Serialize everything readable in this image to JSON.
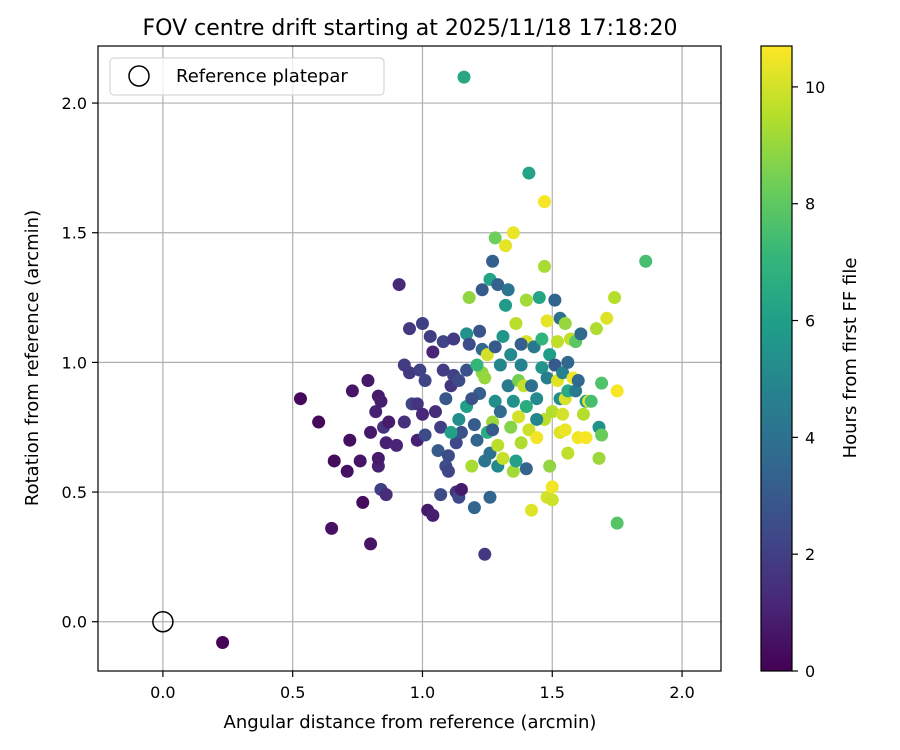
{
  "chart_data": {
    "type": "scatter",
    "title": "FOV centre drift starting at 2025/11/18 17:18:20",
    "xlabel": "Angular distance from reference (arcmin)",
    "ylabel": "Rotation from reference (arcmin)",
    "xlim": [
      -0.25,
      2.15
    ],
    "ylim": [
      -0.19,
      2.22
    ],
    "xticks": [
      0.0,
      0.5,
      1.0,
      1.5,
      2.0
    ],
    "xtick_labels": [
      "0.0",
      "0.5",
      "1.0",
      "1.5",
      "2.0"
    ],
    "yticks": [
      0.0,
      0.5,
      1.0,
      1.5,
      2.0
    ],
    "ytick_labels": [
      "0.0",
      "0.5",
      "1.0",
      "1.5",
      "2.0"
    ],
    "grid": true,
    "legend": {
      "position": "top-left",
      "entries": [
        "Reference platepar"
      ]
    },
    "reference_point": {
      "x": 0.0,
      "y": 0.0,
      "label": "Reference platepar",
      "marker": "hollow-circle"
    },
    "colorbar": {
      "label": "Hours from first FF file",
      "range": [
        0,
        10.7
      ],
      "ticks": [
        0,
        2,
        4,
        6,
        8,
        10
      ],
      "tick_labels": [
        "0",
        "2",
        "4",
        "6",
        "8",
        "10"
      ],
      "colormap": "viridis",
      "stops": [
        "#440154",
        "#482878",
        "#3e4a89",
        "#31688e",
        "#26828e",
        "#1f9e89",
        "#35b779",
        "#6ece58",
        "#b5de2b",
        "#fde725"
      ]
    },
    "series": [
      {
        "name": "FOV centre drift",
        "points": [
          [
            0.23,
            -0.08,
            0.1
          ],
          [
            0.53,
            0.86,
            0.2
          ],
          [
            0.6,
            0.77,
            0.2
          ],
          [
            0.66,
            0.62,
            0.3
          ],
          [
            0.65,
            0.36,
            0.5
          ],
          [
            0.71,
            0.58,
            0.5
          ],
          [
            0.72,
            0.7,
            0.4
          ],
          [
            0.73,
            0.89,
            0.6
          ],
          [
            0.76,
            0.62,
            0.6
          ],
          [
            0.77,
            0.46,
            0.3
          ],
          [
            0.79,
            0.93,
            0.7
          ],
          [
            0.8,
            0.3,
            0.6
          ],
          [
            0.8,
            0.73,
            0.7
          ],
          [
            0.82,
            0.81,
            1.0
          ],
          [
            0.83,
            0.6,
            1.0
          ],
          [
            0.83,
            0.63,
            0.8
          ],
          [
            0.83,
            0.87,
            0.8
          ],
          [
            0.84,
            0.85,
            0.9
          ],
          [
            0.84,
            0.51,
            2.0
          ],
          [
            0.86,
            0.49,
            1.4
          ],
          [
            0.85,
            0.75,
            1.6
          ],
          [
            0.86,
            0.69,
            1.0
          ],
          [
            0.87,
            0.77,
            0.8
          ],
          [
            0.9,
            0.68,
            1.1
          ],
          [
            0.91,
            1.3,
            1.2
          ],
          [
            0.93,
            0.99,
            1.9
          ],
          [
            0.93,
            0.77,
            1.5
          ],
          [
            0.95,
            1.13,
            1.8
          ],
          [
            0.95,
            0.96,
            1.8
          ],
          [
            0.96,
            0.84,
            2.2
          ],
          [
            0.98,
            0.7,
            1.0
          ],
          [
            0.98,
            0.84,
            1.6
          ],
          [
            0.99,
            0.97,
            2.1
          ],
          [
            1.0,
            1.15,
            2.0
          ],
          [
            1.01,
            0.93,
            2.2
          ],
          [
            1.01,
            0.72,
            2.4
          ],
          [
            1.0,
            0.8,
            1.2
          ],
          [
            1.02,
            0.43,
            0.8
          ],
          [
            1.03,
            1.1,
            2.0
          ],
          [
            1.04,
            1.04,
            1.1
          ],
          [
            1.04,
            0.41,
            0.9
          ],
          [
            1.05,
            0.81,
            1.4
          ],
          [
            1.06,
            0.66,
            3.0
          ],
          [
            1.07,
            0.49,
            2.4
          ],
          [
            1.07,
            0.75,
            2.0
          ],
          [
            1.08,
            0.97,
            1.9
          ],
          [
            1.08,
            1.08,
            2.2
          ],
          [
            1.09,
            0.6,
            2.5
          ],
          [
            1.1,
            0.64,
            2.4
          ],
          [
            1.1,
            0.58,
            2.2
          ],
          [
            1.11,
            0.91,
            1.7
          ],
          [
            1.12,
            1.09,
            1.9
          ],
          [
            1.12,
            0.95,
            2.1
          ],
          [
            1.13,
            0.69,
            2.3
          ],
          [
            1.13,
            0.5,
            1.6
          ],
          [
            1.14,
            0.48,
            2.3
          ],
          [
            1.14,
            0.93,
            2.4
          ],
          [
            1.15,
            0.51,
            0.8
          ],
          [
            1.15,
            0.73,
            2.7
          ],
          [
            1.16,
            2.1,
            6.4
          ],
          [
            1.17,
            0.83,
            6.0
          ],
          [
            1.17,
            0.97,
            2.6
          ],
          [
            1.17,
            1.11,
            5.4
          ],
          [
            1.18,
            1.25,
            8.9
          ],
          [
            1.18,
            1.07,
            2.5
          ],
          [
            1.19,
            0.6,
            9.3
          ],
          [
            1.2,
            0.44,
            3.5
          ],
          [
            1.2,
            0.76,
            3.1
          ],
          [
            1.21,
            0.7,
            3.4
          ],
          [
            1.22,
            0.88,
            3.2
          ],
          [
            1.22,
            1.12,
            2.8
          ],
          [
            1.23,
            1.28,
            3.0
          ],
          [
            1.23,
            1.05,
            3.6
          ],
          [
            1.23,
            0.96,
            8.8
          ],
          [
            1.24,
            0.94,
            9.0
          ],
          [
            1.24,
            0.26,
            1.8
          ],
          [
            1.25,
            1.03,
            10.0
          ],
          [
            1.25,
            0.73,
            6.6
          ],
          [
            1.26,
            1.32,
            6.2
          ],
          [
            1.26,
            0.65,
            4.0
          ],
          [
            1.26,
            0.48,
            3.5
          ],
          [
            1.27,
            1.39,
            3.2
          ],
          [
            1.28,
            1.48,
            8.3
          ],
          [
            1.27,
            0.77,
            9.1
          ],
          [
            1.28,
            1.06,
            3.0
          ],
          [
            1.28,
            0.85,
            5.3
          ],
          [
            1.29,
            0.6,
            5.0
          ],
          [
            1.29,
            0.68,
            9.6
          ],
          [
            1.29,
            1.3,
            3.3
          ],
          [
            1.3,
            0.99,
            4.9
          ],
          [
            1.31,
            0.63,
            9.8
          ],
          [
            1.31,
            1.1,
            5.6
          ],
          [
            1.32,
            1.45,
            10.3
          ],
          [
            1.32,
            1.22,
            5.8
          ],
          [
            1.33,
            1.28,
            4.2
          ],
          [
            1.33,
            0.91,
            4.4
          ],
          [
            1.34,
            0.75,
            8.7
          ],
          [
            1.34,
            1.03,
            5.1
          ],
          [
            1.35,
            1.5,
            10.4
          ],
          [
            1.35,
            0.85,
            5.4
          ],
          [
            1.35,
            0.58,
            9.2
          ],
          [
            1.36,
            1.15,
            9.6
          ],
          [
            1.36,
            0.62,
            6.1
          ],
          [
            1.37,
            0.93,
            8.4
          ],
          [
            1.37,
            0.79,
            10.0
          ],
          [
            1.38,
            0.99,
            4.8
          ],
          [
            1.38,
            0.69,
            9.4
          ],
          [
            1.39,
            0.91,
            9.8
          ],
          [
            1.4,
            1.08,
            10.1
          ],
          [
            1.4,
            0.83,
            6.6
          ],
          [
            1.4,
            0.59,
            3.4
          ],
          [
            1.4,
            1.24,
            9.2
          ],
          [
            1.41,
            1.73,
            6.2
          ],
          [
            1.41,
            0.74,
            9.9
          ],
          [
            1.42,
            0.91,
            4.0
          ],
          [
            1.42,
            0.43,
            10.2
          ],
          [
            1.43,
            1.06,
            4.3
          ],
          [
            1.44,
            0.86,
            5.1
          ],
          [
            1.44,
            0.71,
            10.5
          ],
          [
            1.45,
            1.25,
            6.3
          ],
          [
            1.46,
            0.98,
            5.5
          ],
          [
            1.46,
            1.09,
            7.0
          ],
          [
            1.47,
            1.37,
            9.3
          ],
          [
            1.47,
            1.62,
            10.6
          ],
          [
            1.47,
            0.78,
            9.6
          ],
          [
            1.48,
            0.48,
            10.0
          ],
          [
            1.48,
            1.16,
            10.3
          ],
          [
            1.48,
            0.94,
            4.6
          ],
          [
            1.49,
            1.03,
            5.9
          ],
          [
            1.49,
            0.6,
            8.9
          ],
          [
            1.5,
            0.81,
            9.5
          ],
          [
            1.5,
            0.52,
            10.5
          ],
          [
            1.5,
            0.47,
            9.9
          ],
          [
            1.51,
            1.24,
            3.4
          ],
          [
            1.51,
            0.99,
            3.0
          ],
          [
            1.52,
            1.08,
            9.7
          ],
          [
            1.52,
            0.93,
            10.2
          ],
          [
            1.53,
            0.73,
            10.2
          ],
          [
            1.53,
            0.86,
            5.2
          ],
          [
            1.53,
            1.17,
            3.9
          ],
          [
            1.54,
            0.8,
            10.0
          ],
          [
            1.54,
            0.96,
            4.7
          ],
          [
            1.55,
            1.15,
            9.0
          ],
          [
            1.55,
            0.86,
            10.1
          ],
          [
            1.55,
            0.74,
            10.4
          ],
          [
            1.56,
            0.65,
            9.7
          ],
          [
            1.56,
            0.89,
            6.5
          ],
          [
            1.56,
            1.0,
            3.6
          ],
          [
            1.57,
            1.09,
            9.7
          ],
          [
            1.58,
            0.94,
            10.5
          ],
          [
            1.59,
            0.89,
            4.4
          ],
          [
            1.59,
            1.08,
            7.9
          ],
          [
            1.6,
            0.71,
            10.5
          ],
          [
            1.6,
            0.93,
            3.6
          ],
          [
            1.61,
            1.11,
            3.7
          ],
          [
            1.62,
            0.8,
            9.5
          ],
          [
            1.63,
            0.71,
            10.6
          ],
          [
            1.63,
            0.85,
            5.6
          ],
          [
            1.64,
            0.85,
            10.3
          ],
          [
            1.65,
            0.85,
            7.5
          ],
          [
            1.67,
            1.13,
            9.4
          ],
          [
            1.68,
            0.63,
            9.1
          ],
          [
            1.68,
            0.75,
            5.4
          ],
          [
            1.69,
            0.72,
            8.2
          ],
          [
            1.69,
            0.92,
            7.7
          ],
          [
            1.71,
            1.17,
            10.2
          ],
          [
            1.74,
            1.25,
            9.5
          ],
          [
            1.75,
            0.38,
            7.8
          ],
          [
            1.75,
            0.89,
            10.6
          ],
          [
            1.86,
            1.39,
            7.5
          ],
          [
            1.27,
            0.74,
            3.0
          ],
          [
            1.3,
            0.81,
            3.7
          ],
          [
            1.24,
            0.62,
            4.1
          ],
          [
            1.14,
            0.78,
            5.2
          ],
          [
            1.19,
            0.86,
            2.6
          ],
          [
            1.21,
            0.99,
            7.1
          ],
          [
            1.38,
            1.07,
            3.2
          ],
          [
            1.44,
            0.78,
            4.9
          ],
          [
            1.11,
            0.73,
            6.1
          ],
          [
            1.09,
            0.86,
            2.9
          ]
        ]
      }
    ]
  }
}
